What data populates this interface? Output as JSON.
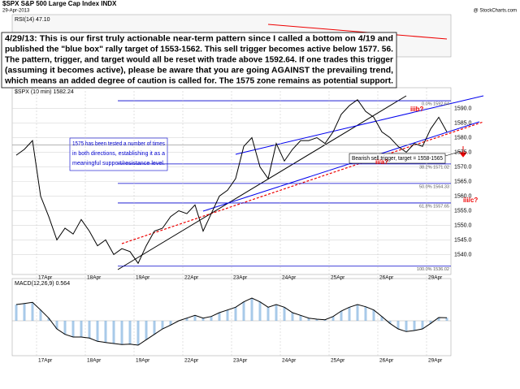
{
  "chart_data": {
    "type": "line",
    "title": "$SPX S&P 500 Large Cap Index INDX",
    "subtitle": "29-Apr-2013",
    "watermark": "@ StockCharts.com",
    "price_label": "$SPX (10 min) 1582.24",
    "rsi_label": "RSI(14) 47.10",
    "macd_label": "MACD(12,26,9) 0.564",
    "color": "#000000",
    "categories": [
      null,
      null,
      null,
      "17Apr",
      null,
      null,
      null,
      null,
      null,
      "18Apr",
      null,
      null,
      null,
      null,
      null,
      "19Apr",
      null,
      null,
      null,
      null,
      null,
      "22Apr",
      null,
      null,
      null,
      null,
      null,
      "23Apr",
      null,
      null,
      null,
      null,
      null,
      "24Apr",
      null,
      null,
      null,
      null,
      null,
      "25Apr",
      null,
      null,
      null,
      null,
      null,
      "26Apr",
      null,
      null,
      null,
      null,
      null,
      "29Apr",
      null,
      null
    ],
    "values": [
      1574,
      1576,
      1579,
      1560,
      1553,
      1545,
      1549,
      1547,
      1552,
      1548,
      1543,
      1545,
      1540,
      1542,
      1541,
      1537,
      1543,
      1548,
      1549,
      1553,
      1555,
      1554,
      1557,
      1548,
      1554,
      1560,
      1562,
      1566,
      1577,
      1580,
      1570,
      1566,
      1578,
      1572,
      1576,
      1579,
      1579,
      1580,
      1578,
      1582,
      1588,
      1591,
      1593,
      1589,
      1587,
      1582,
      1580,
      1577,
      1575,
      1578,
      1577,
      1583,
      1587,
      1582
    ],
    "ylim": [
      1534,
      1596
    ],
    "yticks": [
      {
        "value": 1540,
        "label": "1540.0"
      },
      {
        "value": 1545,
        "label": "1545.0"
      },
      {
        "value": 1550,
        "label": "1550.0"
      },
      {
        "value": 1555,
        "label": "1555.0"
      },
      {
        "value": 1560,
        "label": "1560.0"
      },
      {
        "value": 1565,
        "label": "1565.0"
      },
      {
        "value": 1570,
        "label": "1570.0"
      },
      {
        "value": 1575,
        "label": "1575.0"
      },
      {
        "value": 1580,
        "label": "1580.0"
      },
      {
        "value": 1585,
        "label": "1585.0"
      },
      {
        "value": 1590,
        "label": "1590.0"
      }
    ],
    "fib_levels": [
      {
        "value": 1592.64,
        "label": "0.0% 1592.64"
      },
      {
        "value": 1571.02,
        "label": "38.2% 1571.02"
      },
      {
        "value": 1564.33,
        "label": "50.0% 1564.33"
      },
      {
        "value": 1557.65,
        "label": "61.8% 1557.65"
      },
      {
        "value": 1536.02,
        "label": "100.0% 1536.02"
      }
    ],
    "trigger": 1577.56,
    "macd": {
      "values": [
        3,
        3.2,
        3.4,
        2,
        0.5,
        -1.5,
        -2.5,
        -3,
        -3,
        -3.2,
        -3.8,
        -4,
        -4.2,
        -4.4,
        -4.3,
        -4.5,
        -3.5,
        -2.5,
        -1.5,
        -0.8,
        0,
        0.5,
        1,
        0.5,
        0.8,
        1.5,
        2,
        2.5,
        3.5,
        4.2,
        3.5,
        2.5,
        3,
        2.5,
        1.5,
        1,
        0.5,
        0.3,
        0.2,
        0.8,
        1.8,
        2.5,
        3,
        2.6,
        2,
        0.8,
        -0.5,
        -1.5,
        -2,
        -1.8,
        -1.5,
        -0.5,
        0.6,
        0.564
      ],
      "ylim": [
        -6,
        6
      ]
    },
    "wave_labels": [
      "iiib?",
      "ii/a?",
      "iii/c?"
    ],
    "note_lines": [
      "4/29/13:  This is our first truly actionable near-term pattern since I called a bottom on 4/19 and",
      "published the \"blue box\" rally target of 1553-1562.  This sell trigger becomes active below 1577. 56.",
      "The pattern, trigger, and target would all be reset with trade above 1592.64.  If one trades this trigger",
      "(assuming it becomes active), please be aware that you are going AGAINST the prevailing trend,",
      "which means an added degree of caution is called for.  The 1575 zone remains as potential support."
    ],
    "support_note": [
      "1575 has been tested a number of times",
      "in both directions, establishing it as a",
      "meaningful support/resistance level."
    ],
    "trigger_note": "Bearish sell trigger, target = 1558-1565"
  }
}
